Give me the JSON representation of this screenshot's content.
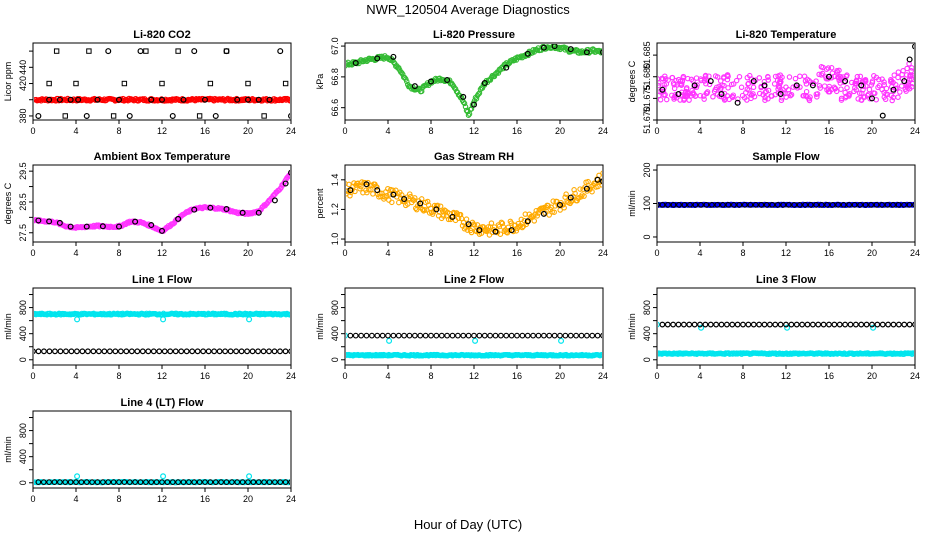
{
  "figure": {
    "title": "NWR_120504  Average Diagnostics",
    "xlabel": "Hour of Day (UTC)"
  },
  "chart_data": [
    {
      "type": "scatter",
      "title": "Li-820 CO2",
      "ylabel": "Licor ppm",
      "xlim": [
        0,
        24
      ],
      "ylim": [
        375,
        470
      ],
      "xticks": [
        0,
        4,
        8,
        12,
        16,
        20,
        24
      ],
      "yticks": [
        380,
        400,
        420,
        440,
        460
      ],
      "ytick_labels": [
        "380",
        "",
        "420",
        "440",
        ""
      ],
      "series": [
        {
          "color": "#ff0000",
          "marker": "band",
          "x": [
            0.2,
            24
          ],
          "y": [
            400,
            400
          ],
          "spread": 1.5
        },
        {
          "color": "#000000",
          "marker": "circle",
          "x": [
            0.5,
            1.5,
            2.5,
            3.5,
            4.2,
            5,
            6,
            7,
            8,
            9,
            10,
            11,
            12,
            13,
            14,
            15,
            16,
            17,
            18,
            19,
            20,
            21,
            22,
            23,
            24
          ],
          "y": [
            380,
            400,
            400,
            400,
            400,
            380,
            400,
            460,
            400,
            380,
            460,
            400,
            400,
            380,
            400,
            460,
            400,
            380,
            460,
            400,
            400,
            400,
            400,
            460,
            380
          ]
        },
        {
          "color": "#000000",
          "marker": "square",
          "x": [
            1.5,
            2.2,
            3,
            4,
            5.2,
            7.5,
            8.5,
            10.5,
            12,
            13.5,
            15.5,
            16.5,
            18,
            20,
            21.5,
            23.5
          ],
          "y": [
            420,
            460,
            380,
            420,
            460,
            380,
            420,
            460,
            420,
            460,
            380,
            420,
            460,
            420,
            380,
            420
          ]
        }
      ]
    },
    {
      "type": "scatter",
      "title": "Li-820 Pressure",
      "ylabel": "kPa",
      "xlim": [
        0,
        24
      ],
      "ylim": [
        66.52,
        67.02
      ],
      "xticks": [
        0,
        4,
        8,
        12,
        16,
        20,
        24
      ],
      "yticks": [
        66.6,
        66.8,
        67.0
      ],
      "ytick_labels": [
        "66.6",
        "66.8",
        "67.0"
      ],
      "series": [
        {
          "color": "#33bb33",
          "marker": "band",
          "spread": 0.012,
          "x": [
            0,
            1,
            2,
            3,
            4,
            5,
            6,
            7,
            8,
            9,
            10,
            11,
            11.5,
            12,
            13,
            14,
            15,
            16,
            17,
            18,
            19,
            20,
            21,
            22,
            23,
            24
          ],
          "y": [
            66.88,
            66.89,
            66.91,
            66.92,
            66.93,
            66.86,
            66.74,
            66.71,
            66.77,
            66.79,
            66.76,
            66.64,
            66.55,
            66.64,
            66.76,
            66.82,
            66.88,
            66.92,
            66.95,
            66.98,
            67.0,
            66.99,
            66.97,
            66.96,
            66.97,
            66.96
          ]
        },
        {
          "color": "#000000",
          "marker": "circle",
          "x": [
            1,
            3,
            4.5,
            6.5,
            8,
            9.5,
            11,
            12,
            13,
            15,
            17,
            18.5,
            19.5,
            21,
            22.5,
            24
          ],
          "y": [
            66.89,
            66.92,
            66.93,
            66.74,
            66.77,
            66.78,
            66.67,
            66.62,
            66.76,
            66.86,
            66.95,
            66.99,
            67.0,
            66.98,
            66.96,
            66.96
          ]
        }
      ]
    },
    {
      "type": "scatter",
      "title": "Li-820 Temperature",
      "ylabel": "degrees C",
      "xlim": [
        0,
        24
      ],
      "ylim": [
        51.67,
        51.6878
      ],
      "xticks": [
        0,
        4,
        8,
        12,
        16,
        20,
        24
      ],
      "yticks": [
        51.67,
        51.675,
        51.68,
        51.685
      ],
      "ytick_labels": [
        "51.670",
        "51.675",
        "51.680",
        "51.685"
      ],
      "series": [
        {
          "color": "#ff33ff",
          "marker": "noise",
          "center": 51.6775,
          "amp": 0.003,
          "trend": "mild-up-end",
          "x": [
            0,
            24
          ]
        },
        {
          "color": "#000000",
          "marker": "circle",
          "x": [
            0.5,
            2,
            3.5,
            5,
            6,
            7.5,
            9,
            10,
            11.5,
            13,
            14.5,
            16,
            17.5,
            19,
            20,
            21,
            22,
            23,
            23.5,
            24
          ],
          "y": [
            51.677,
            51.676,
            51.678,
            51.679,
            51.676,
            51.674,
            51.679,
            51.678,
            51.676,
            51.678,
            51.678,
            51.68,
            51.679,
            51.678,
            51.675,
            51.671,
            51.677,
            51.679,
            51.684,
            51.687
          ]
        }
      ]
    },
    {
      "type": "scatter",
      "title": "Ambient Box Temperature",
      "ylabel": "degrees C",
      "xlim": [
        0,
        24
      ],
      "ylim": [
        27.2,
        29.7
      ],
      "xticks": [
        0,
        4,
        8,
        12,
        16,
        20,
        24
      ],
      "yticks": [
        27.5,
        28.0,
        28.5,
        29.0,
        29.5
      ],
      "ytick_labels": [
        "27.5",
        "",
        "28.5",
        "",
        "29.5"
      ],
      "series": [
        {
          "color": "#ff33ff",
          "marker": "band",
          "spread": 0.03,
          "x": [
            0,
            1,
            2,
            3,
            4,
            5,
            6,
            7,
            8,
            9,
            10,
            11,
            12,
            13,
            14,
            15,
            16,
            17,
            18,
            19,
            20,
            21,
            22,
            23,
            24
          ],
          "y": [
            27.9,
            27.88,
            27.85,
            27.72,
            27.66,
            27.7,
            27.72,
            27.7,
            27.7,
            27.86,
            27.84,
            27.72,
            27.55,
            27.8,
            28.1,
            28.28,
            28.32,
            28.3,
            28.25,
            28.15,
            28.12,
            28.2,
            28.55,
            28.95,
            29.45
          ]
        },
        {
          "color": "#000000",
          "marker": "circle",
          "x": [
            0.5,
            1.5,
            2.5,
            3.5,
            5,
            6.5,
            8,
            9.5,
            11,
            12,
            13.5,
            15,
            16.5,
            18,
            19.5,
            21,
            22.5,
            23.5,
            24
          ],
          "y": [
            27.9,
            27.87,
            27.82,
            27.7,
            27.7,
            27.71,
            27.7,
            27.86,
            27.75,
            27.56,
            27.95,
            28.25,
            28.31,
            28.27,
            28.15,
            28.15,
            28.55,
            29.1,
            29.45
          ]
        }
      ]
    },
    {
      "type": "scatter",
      "title": "Gas Stream RH",
      "ylabel": "percent",
      "xlim": [
        0,
        24
      ],
      "ylim": [
        0.98,
        1.5
      ],
      "xticks": [
        0,
        4,
        8,
        12,
        16,
        20,
        24
      ],
      "yticks": [
        1.0,
        1.2,
        1.4
      ],
      "ytick_labels": [
        "1.0",
        "1.2",
        "1.4"
      ],
      "series": [
        {
          "color": "#ffaa00",
          "marker": "band",
          "spread": 0.045,
          "x": [
            0,
            2,
            4,
            6,
            8,
            10,
            12,
            14,
            16,
            18,
            20,
            22,
            24
          ],
          "y": [
            1.33,
            1.35,
            1.3,
            1.26,
            1.21,
            1.15,
            1.08,
            1.06,
            1.1,
            1.17,
            1.24,
            1.32,
            1.41
          ]
        },
        {
          "color": "#000000",
          "marker": "circle",
          "x": [
            0.5,
            2,
            3,
            4.5,
            5.5,
            7,
            8.5,
            10,
            11.5,
            12.5,
            14,
            15.5,
            17,
            18.5,
            20,
            21,
            22.5,
            23.5,
            24
          ],
          "y": [
            1.33,
            1.37,
            1.33,
            1.3,
            1.27,
            1.24,
            1.2,
            1.15,
            1.1,
            1.06,
            1.05,
            1.06,
            1.12,
            1.17,
            1.23,
            1.28,
            1.34,
            1.4,
            1.39
          ]
        }
      ]
    },
    {
      "type": "scatter",
      "title": "Sample Flow",
      "ylabel": "ml/min",
      "xlim": [
        0,
        24
      ],
      "ylim": [
        -15,
        215
      ],
      "xticks": [
        0,
        4,
        8,
        12,
        16,
        20,
        24
      ],
      "yticks": [
        0,
        100,
        200
      ],
      "ytick_labels": [
        "0",
        "100",
        "200"
      ],
      "series": [
        {
          "color": "#0000ff",
          "marker": "band",
          "spread": 1.2,
          "x": [
            0,
            24
          ],
          "y": [
            96,
            96
          ]
        },
        {
          "color": "#000000",
          "marker": "circle-dense",
          "x": [
            0,
            24
          ],
          "y": [
            96,
            96
          ]
        }
      ]
    },
    {
      "type": "scatter",
      "title": "Line 1 Flow",
      "ylabel": "ml/min",
      "xlim": [
        0,
        24
      ],
      "ylim": [
        -80,
        1100
      ],
      "xticks": [
        0,
        4,
        8,
        12,
        16,
        20,
        24
      ],
      "yticks": [
        0,
        200,
        400,
        600,
        800,
        1000
      ],
      "ytick_labels": [
        "0",
        "",
        "400",
        "",
        "800",
        ""
      ],
      "series": [
        {
          "color": "#00e5ee",
          "marker": "band",
          "spread": 12,
          "x": [
            0,
            24
          ],
          "y": [
            700,
            700
          ]
        },
        {
          "color": "#00e5ee",
          "marker": "circle",
          "x": [
            4.1,
            12.1,
            20.1
          ],
          "y": [
            620,
            620,
            620
          ]
        },
        {
          "color": "#000000",
          "marker": "circle-dense",
          "x": [
            0,
            24
          ],
          "y": [
            130,
            130
          ]
        }
      ]
    },
    {
      "type": "scatter",
      "title": "Line 2 Flow",
      "ylabel": "ml/min",
      "xlim": [
        0,
        24
      ],
      "ylim": [
        -80,
        1100
      ],
      "xticks": [
        0,
        4,
        8,
        12,
        16,
        20,
        24
      ],
      "yticks": [
        0,
        200,
        400,
        600,
        800,
        1000
      ],
      "ytick_labels": [
        "0",
        "",
        "400",
        "",
        "800",
        ""
      ],
      "series": [
        {
          "color": "#00e5ee",
          "marker": "band",
          "spread": 10,
          "x": [
            0,
            24
          ],
          "y": [
            70,
            70
          ]
        },
        {
          "color": "#00e5ee",
          "marker": "circle",
          "x": [
            0,
            4.1,
            12.1,
            20.1
          ],
          "y": [
            370,
            290,
            290,
            290
          ]
        },
        {
          "color": "#000000",
          "marker": "circle-dense",
          "x": [
            0.5,
            24
          ],
          "y": [
            370,
            370
          ]
        }
      ]
    },
    {
      "type": "scatter",
      "title": "Line 3 Flow",
      "ylabel": "ml/min",
      "xlim": [
        0,
        24
      ],
      "ylim": [
        -80,
        1100
      ],
      "xticks": [
        0,
        4,
        8,
        12,
        16,
        20,
        24
      ],
      "yticks": [
        0,
        200,
        400,
        600,
        800,
        1000
      ],
      "ytick_labels": [
        "0",
        "",
        "400",
        "",
        "800",
        ""
      ],
      "series": [
        {
          "color": "#00e5ee",
          "marker": "band",
          "spread": 10,
          "x": [
            0,
            24
          ],
          "y": [
            95,
            95
          ]
        },
        {
          "color": "#00e5ee",
          "marker": "circle",
          "x": [
            0,
            4.1,
            12.1,
            20.1
          ],
          "y": [
            540,
            490,
            490,
            490
          ]
        },
        {
          "color": "#000000",
          "marker": "circle-dense",
          "x": [
            0.5,
            24
          ],
          "y": [
            540,
            540
          ]
        }
      ]
    },
    {
      "type": "scatter",
      "title": "Line 4 (LT) Flow",
      "ylabel": "ml/min",
      "xlim": [
        0,
        24
      ],
      "ylim": [
        -80,
        1100
      ],
      "xticks": [
        0,
        4,
        8,
        12,
        16,
        20,
        24
      ],
      "yticks": [
        0,
        200,
        400,
        600,
        800,
        1000
      ],
      "ytick_labels": [
        "0",
        "",
        "400",
        "",
        "800",
        ""
      ],
      "series": [
        {
          "color": "#00e5ee",
          "marker": "band",
          "spread": 6,
          "x": [
            0,
            24
          ],
          "y": [
            10,
            10
          ]
        },
        {
          "color": "#00e5ee",
          "marker": "circle",
          "x": [
            0,
            4.1,
            12.1,
            20.1
          ],
          "y": [
            10,
            100,
            100,
            100
          ]
        },
        {
          "color": "#000000",
          "marker": "circle-dense",
          "x": [
            0.5,
            24
          ],
          "y": [
            10,
            10
          ]
        }
      ]
    }
  ]
}
